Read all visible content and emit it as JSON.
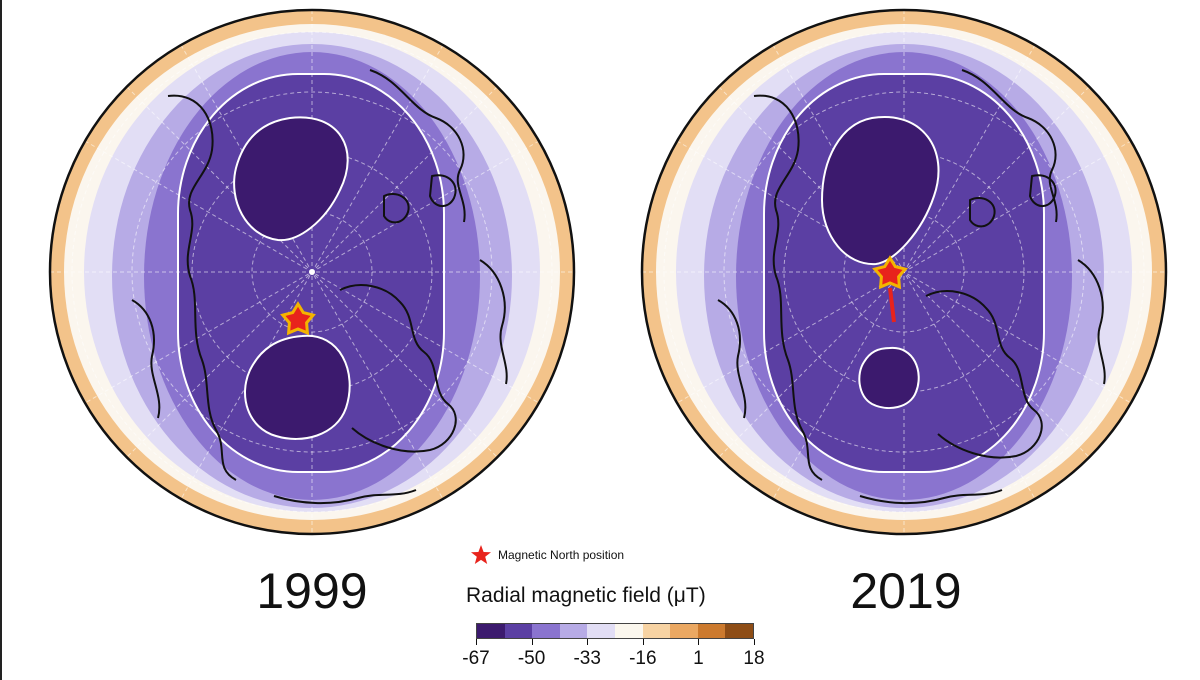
{
  "maps": [
    {
      "year": "1999",
      "poles": "two",
      "star_note": "below center"
    },
    {
      "year": "2019",
      "poles": "two",
      "star_note": "near center"
    }
  ],
  "legend": {
    "star_label": "Magnetic North position",
    "colorbar_title": "Radial magnetic field (μT)",
    "ticks": [
      "-67",
      "-50",
      "-33",
      "-16",
      "1",
      "18"
    ],
    "colors": [
      "#3c1a6e",
      "#5b3fa3",
      "#8a74cf",
      "#b7abe6",
      "#e2def5",
      "#fbf7ee",
      "#f7d3a3",
      "#eba862",
      "#cc7a2e",
      "#8e4d16"
    ]
  },
  "accent": {
    "star_fill": "#e8231c",
    "star_stroke": "#f4b400",
    "track": "#e8231c"
  }
}
